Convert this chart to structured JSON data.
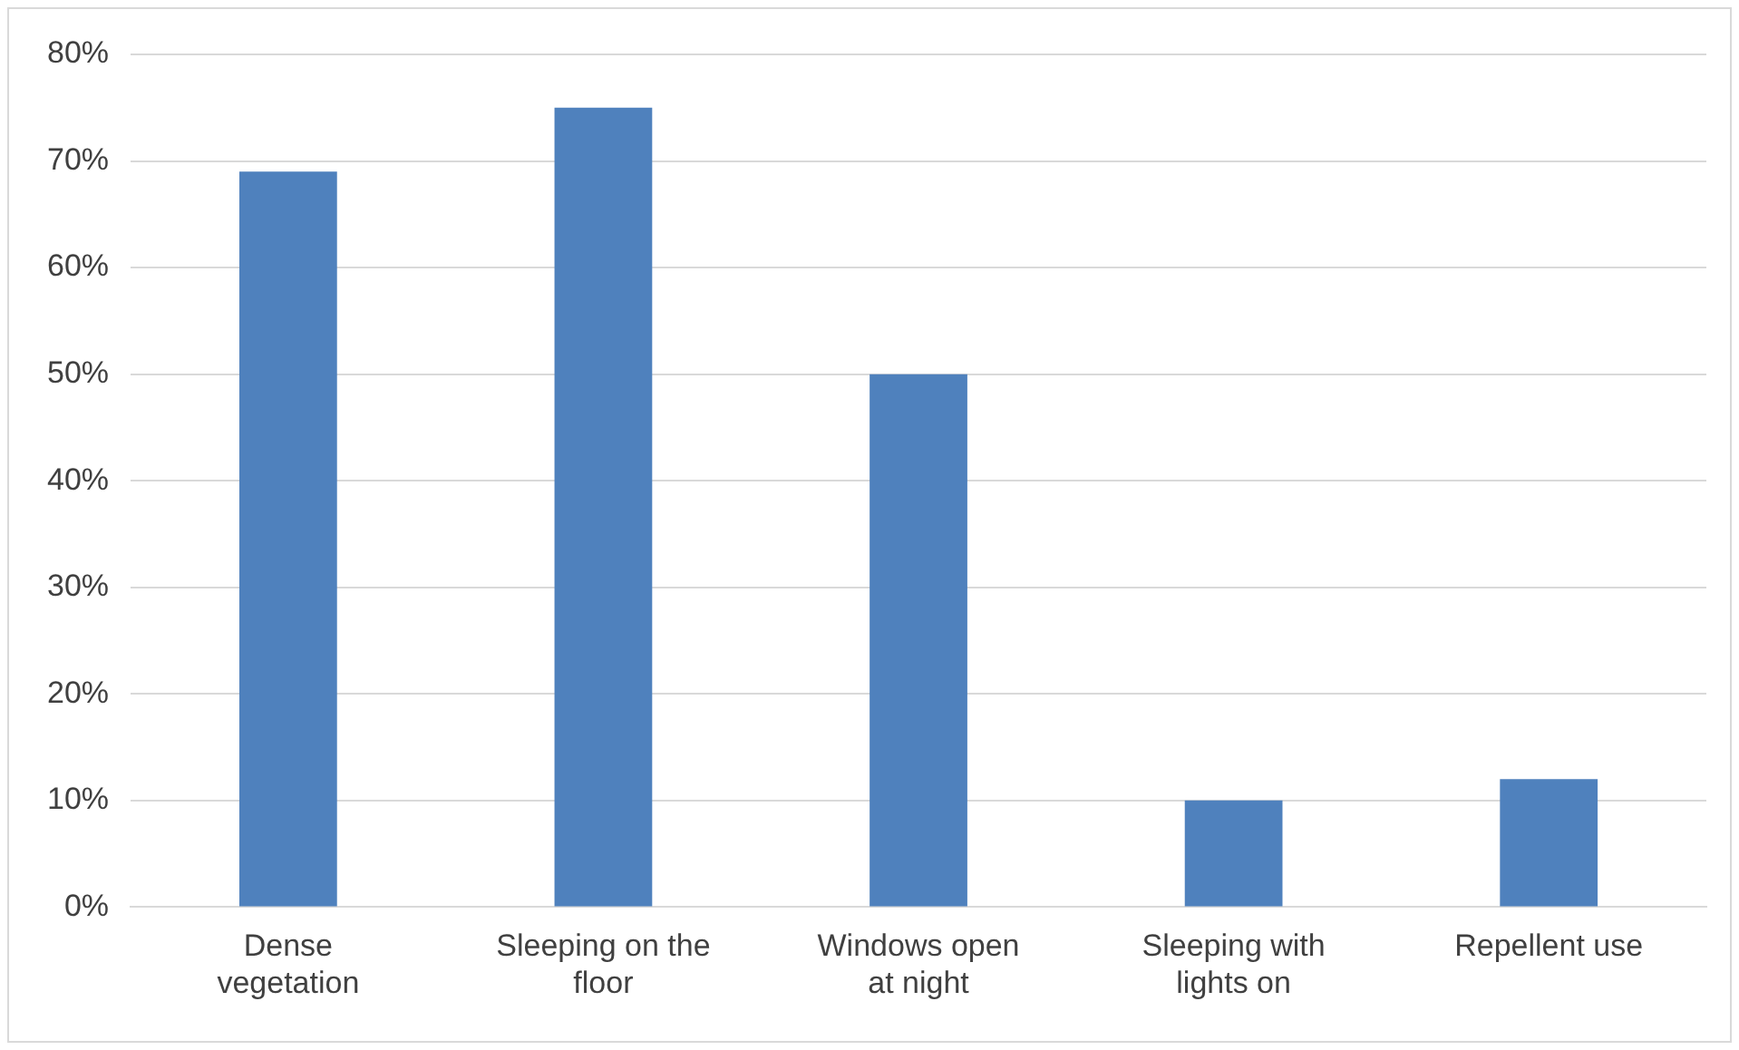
{
  "chart_data": {
    "type": "bar",
    "categories": [
      "Dense vegetation",
      "Sleeping on the floor",
      "Windows open at night",
      "Sleeping with lights on",
      "Repellent use"
    ],
    "values": [
      69,
      75,
      50,
      10,
      12
    ],
    "color": "#4f81bd",
    "ylim": [
      0,
      80
    ],
    "yticks": [
      {
        "value": 0,
        "label": "0%"
      },
      {
        "value": 10,
        "label": "10%"
      },
      {
        "value": 20,
        "label": "20%"
      },
      {
        "value": 30,
        "label": "30%"
      },
      {
        "value": 40,
        "label": "40%"
      },
      {
        "value": 50,
        "label": "50%"
      },
      {
        "value": 60,
        "label": "60%"
      },
      {
        "value": 70,
        "label": "70%"
      },
      {
        "value": 80,
        "label": "80%"
      }
    ],
    "grid": "y",
    "legend": false
  }
}
